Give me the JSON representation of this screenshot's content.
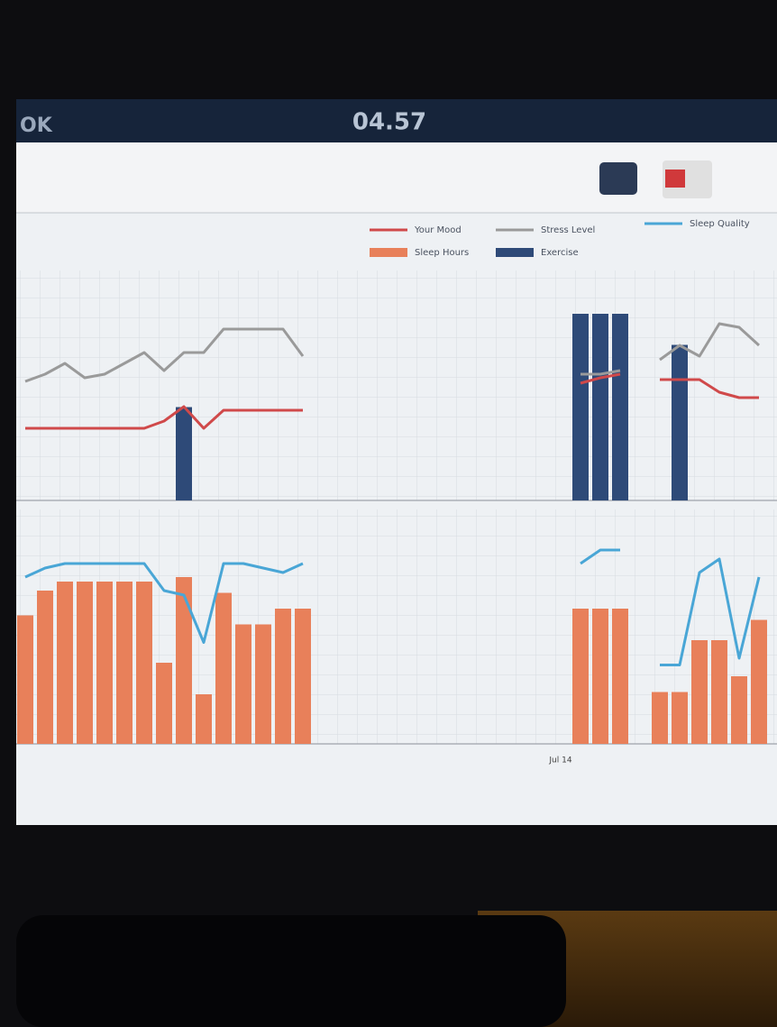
{
  "status_bar": {
    "carrier": "OK",
    "time": "04.57"
  },
  "legend": [
    "Your Mood",
    "Stress Level",
    "Sleep Quality",
    "Sleep Hours",
    "Exercise"
  ],
  "charts": [
    {
      "type": "combo",
      "ylim": [
        0,
        10
      ],
      "y2lim": [
        0,
        80
      ],
      "categories": [
        null,
        null,
        null,
        null,
        null,
        null,
        null,
        null,
        null,
        null,
        null,
        null,
        null,
        null,
        null,
        null,
        null,
        null,
        null,
        null,
        null,
        null,
        null,
        null,
        null,
        null,
        null,
        "Jul 14",
        null,
        null,
        null,
        null,
        null,
        null,
        null,
        null,
        null,
        null
      ],
      "series": [
        {
          "name": "Exercise",
          "kind": "bar",
          "axis": "y2",
          "color": "#2e4a78",
          "values": [
            null,
            null,
            null,
            null,
            null,
            null,
            null,
            null,
            30,
            null,
            null,
            null,
            null,
            null,
            null,
            null,
            null,
            null,
            null,
            null,
            null,
            null,
            null,
            null,
            null,
            null,
            null,
            null,
            60,
            60,
            60,
            null,
            null,
            50,
            null,
            null,
            null,
            null
          ]
        },
        {
          "name": "Stress Level",
          "kind": "line",
          "color": "#9a9a9a",
          "values": [
            6.6,
            7,
            7.6,
            6.8,
            7,
            7.6,
            8.2,
            7.2,
            8.2,
            8.2,
            9.5,
            9.5,
            9.5,
            9.5,
            8,
            null,
            null,
            null,
            null,
            null,
            null,
            null,
            null,
            null,
            null,
            null,
            null,
            null,
            7,
            7,
            7.2,
            null,
            7.8,
            8.6,
            8,
            9.8,
            9.6,
            8.6
          ]
        },
        {
          "name": "Your Mood",
          "kind": "line",
          "color": "#d0494a",
          "values": [
            4,
            4,
            4,
            4,
            4,
            4,
            4,
            4.4,
            5.2,
            4,
            5,
            5,
            5,
            5,
            5,
            null,
            null,
            null,
            null,
            null,
            null,
            null,
            null,
            null,
            null,
            null,
            null,
            null,
            6.5,
            6.8,
            7,
            null,
            6.7,
            6.7,
            6.7,
            6,
            5.7,
            5.7
          ]
        }
      ]
    },
    {
      "type": "combo",
      "ylim": [
        0,
        10
      ],
      "series": [
        {
          "name": "Sleep Hours",
          "kind": "bar",
          "color": "#e8805a",
          "values": [
            5.7,
            6.8,
            7.2,
            7.2,
            7.2,
            7.2,
            7.2,
            3.6,
            7.4,
            2.2,
            6.7,
            5.3,
            5.3,
            6,
            6,
            null,
            null,
            null,
            null,
            null,
            null,
            null,
            null,
            null,
            null,
            null,
            null,
            null,
            6,
            6,
            6,
            null,
            2.3,
            2.3,
            4.6,
            4.6,
            3,
            5.5
          ]
        },
        {
          "name": "Sleep Quality",
          "kind": "line",
          "color": "#49a6d6",
          "values": [
            7.4,
            7.8,
            8,
            8,
            8,
            8,
            8,
            6.8,
            6.6,
            4.5,
            8,
            8,
            7.8,
            7.6,
            8,
            null,
            null,
            null,
            null,
            null,
            null,
            null,
            null,
            null,
            null,
            null,
            null,
            null,
            8,
            8.6,
            8.6,
            null,
            3.5,
            3.5,
            7.6,
            8.2,
            3.8,
            7.4
          ]
        }
      ]
    }
  ]
}
